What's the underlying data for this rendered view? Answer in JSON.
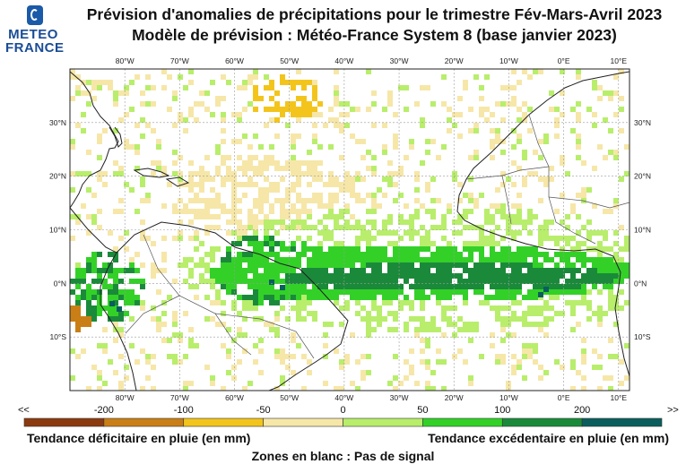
{
  "logo": {
    "line1": "METEO",
    "line2": "FRANCE"
  },
  "title": {
    "line1": "Prévision d'anomalies de précipitations pour le trimestre Fév-Mars-Avril 2023",
    "line2": "Modèle de prévision : Météo-France System 8 (base janvier 2023)"
  },
  "map": {
    "lon_labels": [
      "80°W",
      "70°W",
      "60°W",
      "50°W",
      "40°W",
      "30°W",
      "20°W",
      "10°W",
      "0°E",
      "10°E"
    ],
    "lon_values": [
      -80,
      -70,
      -60,
      -50,
      -40,
      -30,
      -20,
      -10,
      0,
      10
    ],
    "lat_labels": [
      "30°N",
      "20°N",
      "10°N",
      "0°N",
      "10°S"
    ],
    "lat_values": [
      30,
      20,
      10,
      0,
      -10
    ],
    "lon_range": [
      -90,
      12
    ],
    "lat_range": [
      -20,
      40
    ]
  },
  "colorbar": {
    "end_left": "<<",
    "end_right": ">>",
    "tick_labels": [
      "-200",
      "-100",
      "-50",
      "0",
      "50",
      "100",
      "200"
    ],
    "colors": [
      "#8b3a0f",
      "#c97f16",
      "#f3c51c",
      "#f6e7a8",
      "#b8ee6b",
      "#33d128",
      "#1a8a3a",
      "#0b5e5e"
    ]
  },
  "legend": {
    "deficit": "Tendance déficitaire en pluie (en mm)",
    "excess": "Tendance excédentaire en pluie (en mm)",
    "no_signal": "Zones en blanc : Pas de signal"
  }
}
